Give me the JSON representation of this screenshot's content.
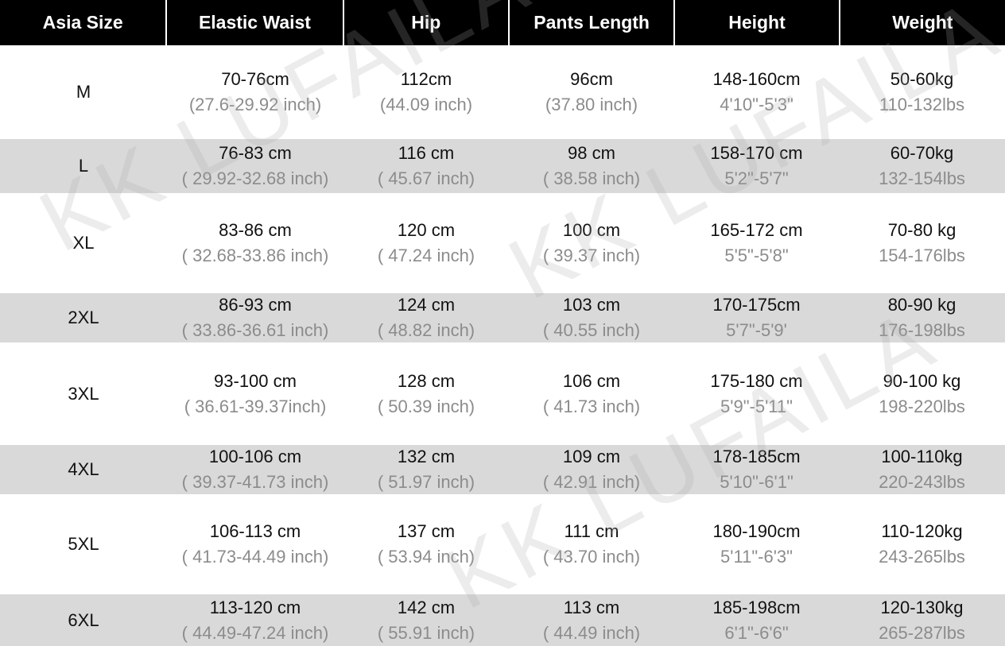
{
  "headers": [
    "Asia Size",
    "Elastic Waist",
    "Hip",
    "Pants Length",
    "Height",
    "Weight"
  ],
  "rows": [
    {
      "size": "M",
      "waist": "70-76cm",
      "waist_in": "(27.6-29.92 inch)",
      "hip": "112cm",
      "hip_in": "(44.09 inch)",
      "length": "96cm",
      "length_in": "(37.80 inch)",
      "height": "148-160cm",
      "height_ft": "4'10\"-5'3\"",
      "weight": "50-60kg",
      "weight_lbs": "110-132lbs"
    },
    {
      "size": "L",
      "waist": "76-83 cm",
      "waist_in": "( 29.92-32.68 inch)",
      "hip": "116 cm",
      "hip_in": "( 45.67 inch)",
      "length": "98 cm",
      "length_in": "( 38.58 inch)",
      "height": "158-170 cm",
      "height_ft": "5'2\"-5'7\"",
      "weight": "60-70kg",
      "weight_lbs": "132-154lbs"
    },
    {
      "size": "XL",
      "waist": "83-86 cm",
      "waist_in": "( 32.68-33.86 inch)",
      "hip": "120 cm",
      "hip_in": "( 47.24 inch)",
      "length": "100 cm",
      "length_in": "( 39.37 inch)",
      "height": "165-172 cm",
      "height_ft": "5'5\"-5'8\"",
      "weight": "70-80 kg",
      "weight_lbs": "154-176lbs"
    },
    {
      "size": "2XL",
      "waist": "86-93 cm",
      "waist_in": "( 33.86-36.61 inch)",
      "hip": "124 cm",
      "hip_in": "( 48.82 inch)",
      "length": "103 cm",
      "length_in": "( 40.55 inch)",
      "height": "170-175cm",
      "height_ft": "5'7\"-5'9'",
      "weight": "80-90 kg",
      "weight_lbs": "176-198lbs"
    },
    {
      "size": "3XL",
      "waist": "93-100 cm",
      "waist_in": "( 36.61-39.37inch)",
      "hip": "128 cm",
      "hip_in": "( 50.39 inch)",
      "length": "106 cm",
      "length_in": "( 41.73 inch)",
      "height": "175-180 cm",
      "height_ft": "5'9\"-5'11\"",
      "weight": "90-100 kg",
      "weight_lbs": "198-220lbs"
    },
    {
      "size": "4XL",
      "waist": "100-106 cm",
      "waist_in": "( 39.37-41.73 inch)",
      "hip": "132 cm",
      "hip_in": "( 51.97 inch)",
      "length": "109 cm",
      "length_in": "( 42.91 inch)",
      "height": "178-185cm",
      "height_ft": "5'10\"-6'1\"",
      "weight": "100-110kg",
      "weight_lbs": "220-243lbs"
    },
    {
      "size": "5XL",
      "waist": "106-113 cm",
      "waist_in": "( 41.73-44.49 inch)",
      "hip": "137 cm",
      "hip_in": "( 53.94 inch)",
      "length": "111 cm",
      "length_in": "( 43.70 inch)",
      "height": "180-190cm",
      "height_ft": "5'11\"-6'3\"",
      "weight": "110-120kg",
      "weight_lbs": "243-265lbs"
    },
    {
      "size": "6XL",
      "waist": "113-120 cm",
      "waist_in": "( 44.49-47.24 inch)",
      "hip": "142 cm",
      "hip_in": "( 55.91 inch)",
      "length": "113 cm",
      "length_in": "( 44.49 inch)",
      "height": "185-198cm",
      "height_ft": "6'1\"-6'6\"",
      "weight": "120-130kg",
      "weight_lbs": "265-287lbs"
    }
  ],
  "watermark": "KK LUFAILA",
  "colors": {
    "header_bg": "#000000",
    "header_text": "#ffffff",
    "stripe": "#d9d9d9",
    "secondary_text": "#8c8c8c"
  }
}
